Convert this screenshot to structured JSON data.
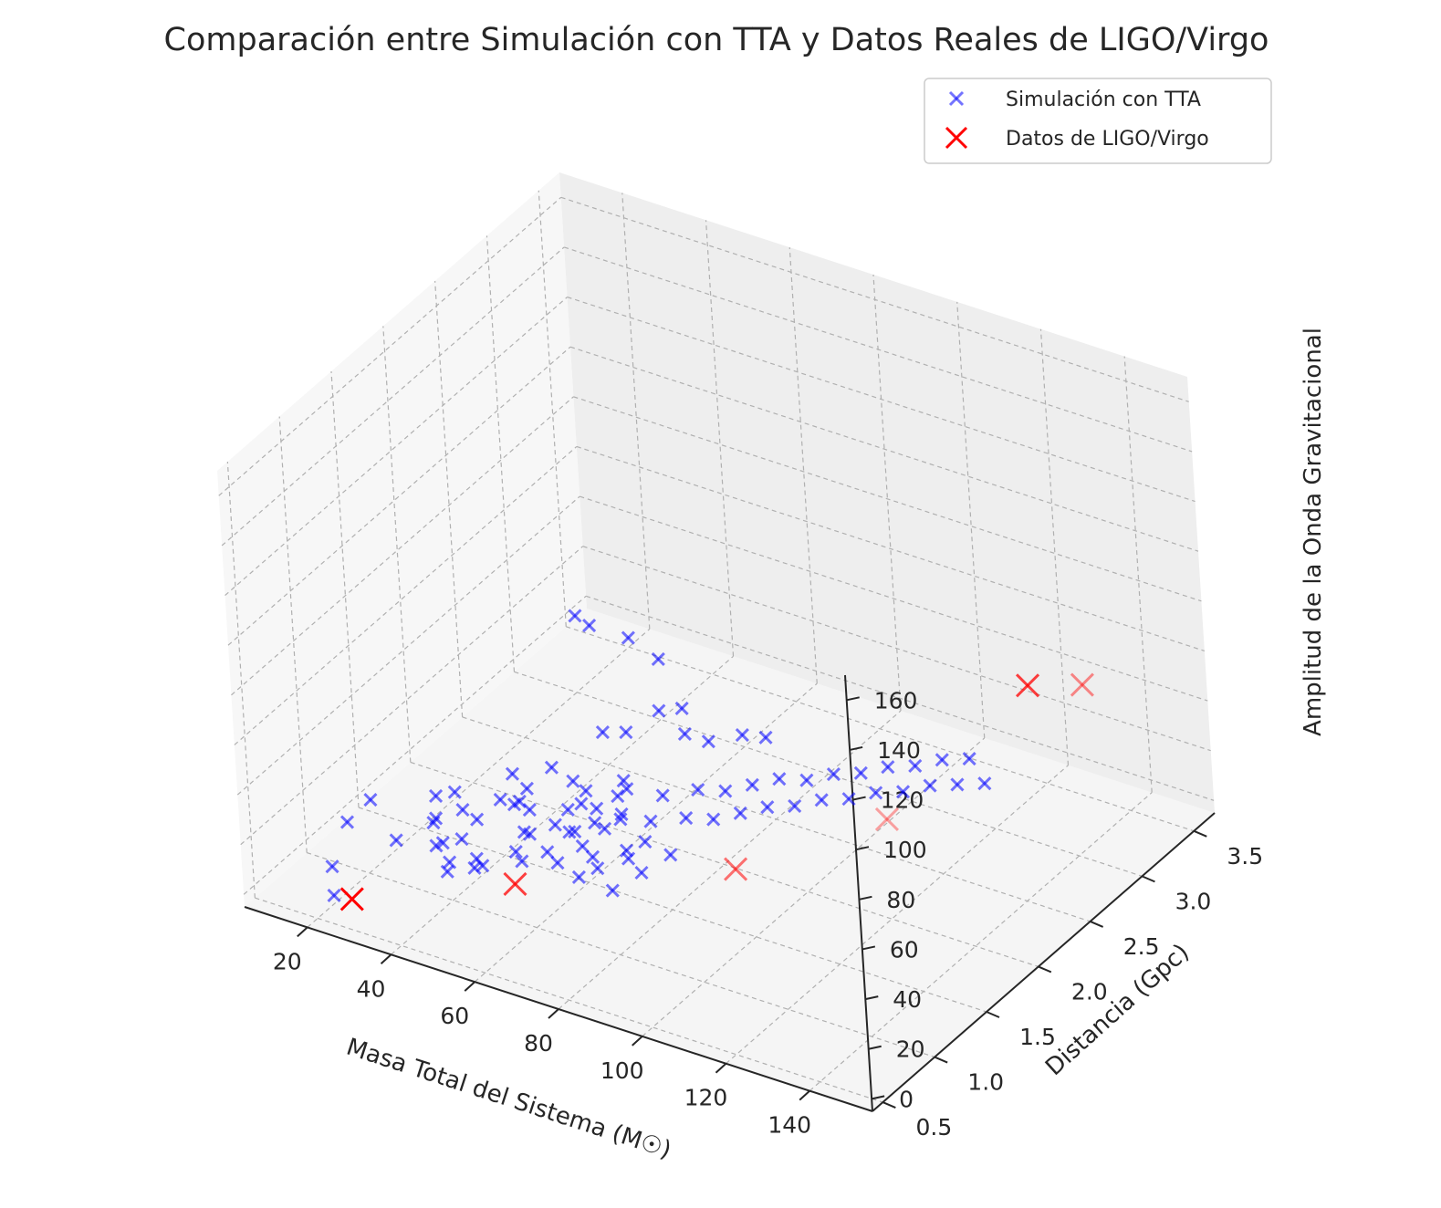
{
  "chart_data": {
    "type": "scatter3d",
    "title": "Comparación entre Simulación con TTA y Datos Reales de LIGO/Virgo",
    "xlabel": "Masa Total del Sistema (M☉)",
    "ylabel": "Distancia (Gpc)",
    "zlabel": "Amplitud de la Onda Gravitacional",
    "xlim": [
      5,
      155
    ],
    "ylim": [
      0.4,
      3.7
    ],
    "zlim": [
      -5,
      170
    ],
    "xticks": [
      20,
      40,
      60,
      80,
      100,
      120,
      140
    ],
    "yticks": [
      0.5,
      1.0,
      1.5,
      2.0,
      2.5,
      3.0,
      3.5
    ],
    "zticks": [
      0,
      20,
      40,
      60,
      80,
      100,
      120,
      140,
      160
    ],
    "xtick_labels": [
      "20",
      "40",
      "60",
      "80",
      "100",
      "120",
      "140"
    ],
    "ytick_labels": [
      "0.5",
      "1.0",
      "1.5",
      "2.0",
      "2.5",
      "3.0",
      "3.5"
    ],
    "ztick_labels": [
      "0",
      "20",
      "40",
      "60",
      "80",
      "100",
      "120",
      "140",
      "160"
    ],
    "grid": true,
    "legend_position": "top-right",
    "series": [
      {
        "name": "Simulación con TTA",
        "marker": "x",
        "color": "#0000ff",
        "alpha": 0.55,
        "points": [
          [
            18.0,
            0.9,
            18
          ],
          [
            16.0,
            1.2,
            15
          ],
          [
            19.0,
            0.7,
            8
          ],
          [
            23.0,
            0.55,
            4
          ],
          [
            24.0,
            1.5,
            10
          ],
          [
            26.0,
            1.6,
            9
          ],
          [
            27.0,
            1.0,
            12
          ],
          [
            29.0,
            1.3,
            11
          ],
          [
            31.0,
            1.2,
            14
          ],
          [
            33.0,
            1.4,
            13
          ],
          [
            34.0,
            1.1,
            10
          ],
          [
            35.0,
            1.8,
            14
          ],
          [
            37.0,
            1.6,
            12
          ],
          [
            39.0,
            1.3,
            16
          ],
          [
            41.0,
            1.7,
            15
          ],
          [
            43.0,
            1.5,
            17
          ],
          [
            45.0,
            1.1,
            8
          ],
          [
            47.0,
            1.9,
            14
          ],
          [
            49.0,
            1.4,
            12
          ],
          [
            52.0,
            1.2,
            10
          ],
          [
            54.0,
            1.7,
            16
          ],
          [
            56.0,
            1.5,
            13
          ],
          [
            58.0,
            1.3,
            9
          ],
          [
            60.0,
            1.9,
            18
          ],
          [
            62.0,
            1.6,
            14
          ],
          [
            64.0,
            1.4,
            11
          ],
          [
            66.0,
            2.0,
            15
          ],
          [
            68.0,
            1.8,
            13
          ],
          [
            70.0,
            1.5,
            10
          ],
          [
            72.0,
            2.1,
            17
          ],
          [
            74.0,
            1.9,
            14
          ],
          [
            76.0,
            2.2,
            15
          ],
          [
            78.0,
            2.0,
            12
          ],
          [
            80.0,
            2.3,
            16
          ],
          [
            82.0,
            2.1,
            13
          ],
          [
            84.0,
            2.4,
            17
          ],
          [
            86.0,
            2.2,
            14
          ],
          [
            88.0,
            2.5,
            15
          ],
          [
            90.0,
            2.3,
            13
          ],
          [
            92.0,
            2.6,
            16
          ],
          [
            94.0,
            2.4,
            14
          ],
          [
            96.0,
            2.7,
            15
          ],
          [
            98.0,
            2.5,
            13
          ],
          [
            100.0,
            2.8,
            16
          ],
          [
            102.0,
            2.6,
            14
          ],
          [
            104.0,
            2.9,
            15
          ],
          [
            106.0,
            2.7,
            13
          ],
          [
            108.0,
            3.0,
            16
          ],
          [
            110.0,
            2.8,
            14
          ],
          [
            112.0,
            3.1,
            15
          ],
          [
            114.0,
            2.9,
            13
          ],
          [
            118.0,
            3.0,
            12
          ],
          [
            33.0,
            1.2,
            7
          ],
          [
            35.0,
            1.3,
            6
          ],
          [
            37.0,
            1.1,
            5
          ],
          [
            39.0,
            1.0,
            6
          ],
          [
            41.0,
            1.2,
            5
          ],
          [
            43.0,
            1.1,
            6
          ],
          [
            45.0,
            1.5,
            7
          ],
          [
            48.0,
            1.3,
            8
          ],
          [
            50.0,
            1.6,
            9
          ],
          [
            53.0,
            1.4,
            7
          ],
          [
            55.0,
            1.8,
            11
          ],
          [
            57.0,
            1.7,
            10
          ],
          [
            59.0,
            1.5,
            9
          ],
          [
            61.0,
            1.8,
            12
          ],
          [
            63.0,
            1.3,
            6
          ],
          [
            65.0,
            1.4,
            7
          ],
          [
            67.0,
            1.6,
            8
          ],
          [
            69.0,
            1.7,
            9
          ],
          [
            71.0,
            1.3,
            5
          ],
          [
            73.0,
            1.5,
            6
          ],
          [
            75.0,
            1.7,
            7
          ],
          [
            47.0,
            1.4,
            24
          ],
          [
            50.0,
            1.6,
            32
          ],
          [
            55.0,
            1.9,
            38
          ],
          [
            58.0,
            2.0,
            36
          ],
          [
            61.0,
            2.2,
            39
          ],
          [
            64.0,
            2.3,
            38
          ],
          [
            67.0,
            2.2,
            33
          ],
          [
            70.0,
            2.3,
            28
          ],
          [
            73.0,
            2.5,
            25
          ],
          [
            76.0,
            2.6,
            22
          ],
          [
            52.0,
            1.3,
            27
          ],
          [
            56.0,
            1.5,
            22
          ],
          [
            60.0,
            1.4,
            19
          ],
          [
            63.0,
            1.7,
            24
          ],
          [
            66.0,
            1.6,
            20
          ],
          [
            58.0,
            1.6,
            27
          ],
          [
            62.0,
            1.8,
            26
          ],
          [
            50.0,
            1.9,
            82
          ],
          [
            56.0,
            1.8,
            85
          ],
          [
            60.0,
            2.0,
            75
          ],
          [
            59.0,
            2.3,
            55
          ]
        ]
      },
      {
        "name": "Datos de LIGO/Virgo",
        "marker": "x",
        "color": "#ff0000",
        "points": [
          [
            30.0,
            0.45,
            10
          ],
          [
            58.0,
            0.9,
            15
          ],
          [
            96.0,
            1.5,
            20
          ],
          [
            115.0,
            2.2,
            25
          ],
          [
            118.0,
            3.45,
            35
          ],
          [
            130.0,
            3.5,
            40
          ]
        ]
      }
    ]
  }
}
